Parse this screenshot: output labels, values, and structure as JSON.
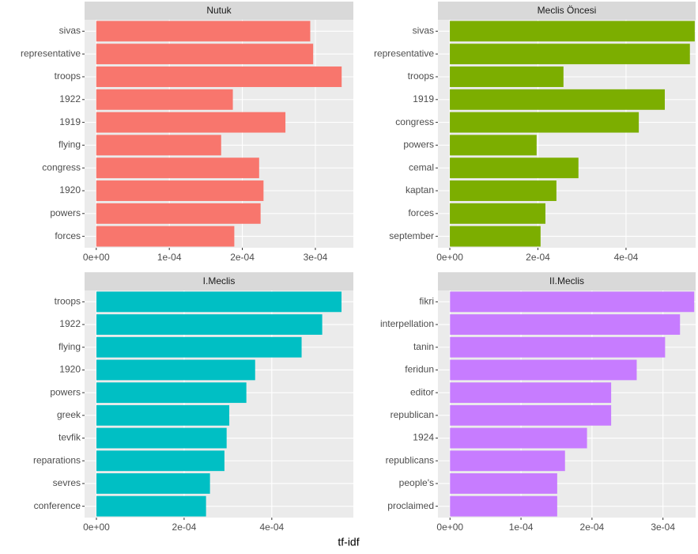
{
  "xlabel": "tf-idf",
  "chart_data": [
    {
      "type": "bar",
      "title": "Nutuk",
      "color": "#F8766D",
      "grid": true,
      "categories": [
        "sivas",
        "representative",
        "troops",
        "1922",
        "1919",
        "flying",
        "congress",
        "1920",
        "powers",
        "forces"
      ],
      "values": [
        0.000293,
        0.000297,
        0.000336,
        0.000187,
        0.000259,
        0.000171,
        0.000223,
        0.000229,
        0.000225,
        0.000189
      ],
      "xlim": [
        -1.6e-05,
        0.000352
      ],
      "xticks": [
        {
          "value": 0,
          "label": "0e+00"
        },
        {
          "value": 0.0001,
          "label": "1e-04"
        },
        {
          "value": 0.0002,
          "label": "2e-04"
        },
        {
          "value": 0.0003,
          "label": "3e-04"
        }
      ]
    },
    {
      "type": "bar",
      "title": "Meclis Öncesi",
      "color": "#7CAE00",
      "grid": true,
      "categories": [
        "sivas",
        "representative",
        "troops",
        "1919",
        "congress",
        "powers",
        "cemal",
        "kaptan",
        "forces",
        "september"
      ],
      "values": [
        0.000556,
        0.000545,
        0.000258,
        0.000488,
        0.000429,
        0.000197,
        0.000292,
        0.000242,
        0.000217,
        0.000206
      ],
      "xlim": [
        -2.7e-05,
        0.000558
      ],
      "xticks": [
        {
          "value": 0,
          "label": "0e+00"
        },
        {
          "value": 0.0002,
          "label": "2e-04"
        },
        {
          "value": 0.0004,
          "label": "4e-04"
        }
      ]
    },
    {
      "type": "bar",
      "title": "I.Meclis",
      "color": "#00BFC4",
      "grid": true,
      "categories": [
        "troops",
        "1922",
        "flying",
        "1920",
        "powers",
        "greek",
        "tevfik",
        "reparations",
        "sevres",
        "conference"
      ],
      "values": [
        0.000559,
        0.000515,
        0.000468,
        0.000362,
        0.000342,
        0.000303,
        0.000297,
        0.000292,
        0.000259,
        0.00025
      ],
      "xlim": [
        -2.7e-05,
        0.000586
      ],
      "xticks": [
        {
          "value": 0,
          "label": "0e+00"
        },
        {
          "value": 0.0002,
          "label": "2e-04"
        },
        {
          "value": 0.0004,
          "label": "4e-04"
        }
      ]
    },
    {
      "type": "bar",
      "title": "II.Meclis",
      "color": "#C77CFF",
      "grid": true,
      "categories": [
        "fikri",
        "interpellation",
        "tanin",
        "feridun",
        "editor",
        "republican",
        "1924",
        "republicans",
        "people's",
        "proclaimed"
      ],
      "values": [
        0.000344,
        0.000324,
        0.000303,
        0.000263,
        0.000227,
        0.000227,
        0.000193,
        0.000162,
        0.000151,
        0.000151
      ],
      "xlim": [
        -1.7e-05,
        0.000346
      ],
      "xticks": [
        {
          "value": 0,
          "label": "0e+00"
        },
        {
          "value": 0.0001,
          "label": "1e-04"
        },
        {
          "value": 0.0002,
          "label": "2e-04"
        },
        {
          "value": 0.0003,
          "label": "3e-04"
        }
      ]
    }
  ]
}
